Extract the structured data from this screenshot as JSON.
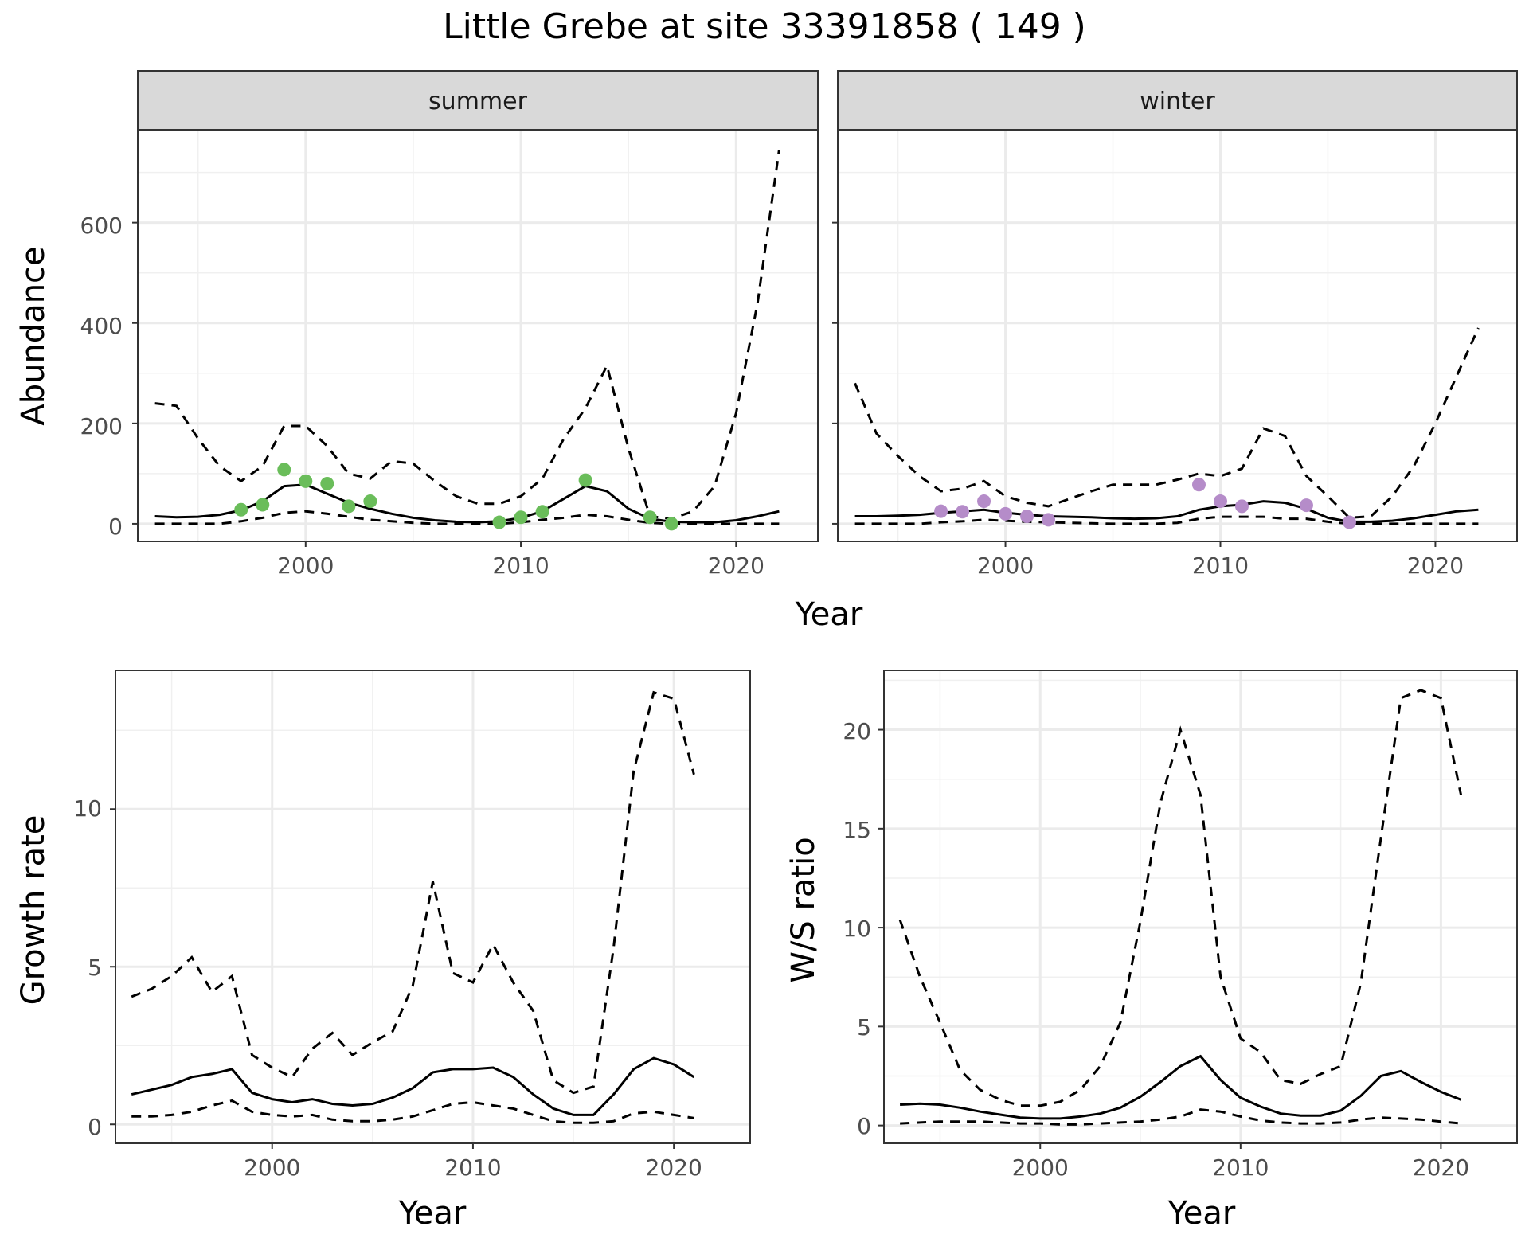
{
  "title": "Little Grebe at site 33391858 ( 149 )",
  "chart_data": [
    {
      "id": "abundance",
      "type": "line",
      "facets": [
        "summer",
        "winter"
      ],
      "xlabel": "Year",
      "ylabel": "Abundance",
      "xlim": [
        1992.2,
        2023.8
      ],
      "ylim": [
        -35,
        785
      ],
      "x_ticks": [
        2000,
        2010,
        2020
      ],
      "y_ticks": [
        0,
        200,
        400,
        600
      ],
      "grid": true,
      "point_colors": {
        "summer": "#6abd5a",
        "winter": "#b58cc9"
      },
      "panels": {
        "summer": {
          "years": [
            1993,
            1994,
            1995,
            1996,
            1997,
            1998,
            1999,
            2000,
            2001,
            2002,
            2003,
            2004,
            2005,
            2006,
            2007,
            2008,
            2009,
            2010,
            2011,
            2012,
            2013,
            2014,
            2015,
            2016,
            2017,
            2018,
            2019,
            2020,
            2021,
            2022
          ],
          "mean": [
            15,
            13,
            14,
            18,
            27,
            45,
            75,
            78,
            60,
            42,
            30,
            20,
            12,
            7,
            4,
            3,
            5,
            12,
            25,
            50,
            75,
            65,
            30,
            10,
            4,
            3,
            3,
            7,
            15,
            25
          ],
          "lower": [
            0,
            0,
            0,
            0,
            5,
            12,
            22,
            25,
            20,
            14,
            8,
            5,
            2,
            0,
            0,
            0,
            0,
            3,
            8,
            12,
            18,
            15,
            8,
            2,
            0,
            0,
            0,
            0,
            0,
            0
          ],
          "upper": [
            240,
            235,
            170,
            115,
            85,
            115,
            195,
            195,
            155,
            100,
            90,
            125,
            120,
            85,
            55,
            40,
            40,
            55,
            90,
            170,
            230,
            315,
            150,
            15,
            10,
            25,
            75,
            220,
            440,
            745
          ],
          "points": [
            [
              1997,
              28
            ],
            [
              1998,
              38
            ],
            [
              1999,
              108
            ],
            [
              2000,
              85
            ],
            [
              2001,
              80
            ],
            [
              2002,
              35
            ],
            [
              2003,
              45
            ],
            [
              2009,
              3
            ],
            [
              2010,
              13
            ],
            [
              2011,
              24
            ],
            [
              2013,
              87
            ],
            [
              2016,
              13
            ],
            [
              2017,
              0
            ]
          ]
        },
        "winter": {
          "years": [
            1993,
            1994,
            1995,
            1996,
            1997,
            1998,
            1999,
            2000,
            2001,
            2002,
            2003,
            2004,
            2005,
            2006,
            2007,
            2008,
            2009,
            2010,
            2011,
            2012,
            2013,
            2014,
            2015,
            2016,
            2017,
            2018,
            2019,
            2020,
            2021,
            2022
          ],
          "mean": [
            15,
            15,
            16,
            18,
            22,
            25,
            28,
            22,
            18,
            15,
            14,
            13,
            11,
            10,
            11,
            15,
            28,
            35,
            38,
            45,
            42,
            30,
            12,
            4,
            4,
            6,
            11,
            18,
            25,
            28
          ],
          "lower": [
            0,
            0,
            0,
            0,
            3,
            5,
            8,
            6,
            4,
            3,
            2,
            1,
            0,
            0,
            0,
            2,
            10,
            14,
            14,
            14,
            10,
            10,
            4,
            0,
            0,
            0,
            0,
            0,
            0,
            0
          ],
          "upper": [
            280,
            180,
            135,
            95,
            65,
            70,
            85,
            55,
            42,
            35,
            50,
            65,
            78,
            78,
            78,
            88,
            100,
            95,
            110,
            190,
            175,
            95,
            55,
            12,
            15,
            55,
            115,
            200,
            295,
            390
          ],
          "points": [
            [
              1997,
              25
            ],
            [
              1998,
              24
            ],
            [
              1999,
              45
            ],
            [
              2000,
              20
            ],
            [
              2001,
              15
            ],
            [
              2002,
              8
            ],
            [
              2009,
              78
            ],
            [
              2010,
              45
            ],
            [
              2011,
              35
            ],
            [
              2014,
              37
            ],
            [
              2016,
              3
            ]
          ]
        }
      }
    },
    {
      "id": "growth",
      "type": "line",
      "xlabel": "Year",
      "ylabel": "Growth rate",
      "xlim": [
        1992.2,
        2023.8
      ],
      "ylim": [
        -0.6,
        14.4
      ],
      "x_ticks": [
        2000,
        2010,
        2020
      ],
      "y_ticks": [
        0,
        5,
        10
      ],
      "grid": true,
      "years": [
        1993,
        1994,
        1995,
        1996,
        1997,
        1998,
        1999,
        2000,
        2001,
        2002,
        2003,
        2004,
        2005,
        2006,
        2007,
        2008,
        2009,
        2010,
        2011,
        2012,
        2013,
        2014,
        2015,
        2016,
        2017,
        2018,
        2019,
        2020,
        2021
      ],
      "mean": [
        0.95,
        1.1,
        1.25,
        1.5,
        1.6,
        1.75,
        1.0,
        0.8,
        0.7,
        0.8,
        0.65,
        0.6,
        0.65,
        0.85,
        1.15,
        1.65,
        1.75,
        1.75,
        1.8,
        1.5,
        0.95,
        0.5,
        0.3,
        0.3,
        0.95,
        1.75,
        2.1,
        1.9,
        1.5
      ],
      "lower": [
        0.25,
        0.25,
        0.3,
        0.4,
        0.6,
        0.75,
        0.4,
        0.3,
        0.25,
        0.3,
        0.15,
        0.1,
        0.1,
        0.15,
        0.25,
        0.45,
        0.65,
        0.7,
        0.6,
        0.5,
        0.3,
        0.1,
        0.05,
        0.05,
        0.1,
        0.35,
        0.4,
        0.3,
        0.2
      ],
      "upper": [
        4.05,
        4.3,
        4.7,
        5.3,
        4.2,
        4.7,
        2.2,
        1.8,
        1.5,
        2.4,
        2.9,
        2.2,
        2.6,
        2.95,
        4.4,
        7.7,
        4.8,
        4.5,
        5.7,
        4.5,
        3.6,
        1.4,
        1.0,
        1.2,
        5.6,
        11.2,
        13.7,
        13.5,
        11.1
      ]
    },
    {
      "id": "ratio",
      "type": "line",
      "xlabel": "Year",
      "ylabel": "W/S ratio",
      "xlim": [
        1992.2,
        2023.8
      ],
      "ylim": [
        -0.9,
        23.0
      ],
      "x_ticks": [
        2000,
        2010,
        2020
      ],
      "y_ticks": [
        0,
        5,
        10,
        15,
        20
      ],
      "grid": true,
      "years": [
        1993,
        1994,
        1995,
        1996,
        1997,
        1998,
        1999,
        2000,
        2001,
        2002,
        2003,
        2004,
        2005,
        2006,
        2007,
        2008,
        2009,
        2010,
        2011,
        2012,
        2013,
        2014,
        2015,
        2016,
        2017,
        2018,
        2019,
        2020,
        2021
      ],
      "mean": [
        1.05,
        1.1,
        1.05,
        0.9,
        0.7,
        0.55,
        0.4,
        0.35,
        0.35,
        0.45,
        0.6,
        0.9,
        1.45,
        2.2,
        3.0,
        3.5,
        2.3,
        1.4,
        0.95,
        0.6,
        0.5,
        0.5,
        0.75,
        1.5,
        2.5,
        2.75,
        2.2,
        1.7,
        1.3
      ],
      "lower": [
        0.1,
        0.15,
        0.2,
        0.2,
        0.2,
        0.15,
        0.1,
        0.1,
        0.05,
        0.05,
        0.1,
        0.15,
        0.2,
        0.3,
        0.45,
        0.8,
        0.7,
        0.45,
        0.25,
        0.15,
        0.1,
        0.1,
        0.15,
        0.3,
        0.4,
        0.35,
        0.3,
        0.2,
        0.1
      ],
      "upper": [
        10.4,
        7.5,
        5.2,
        2.8,
        1.8,
        1.3,
        1.0,
        1.0,
        1.2,
        1.8,
        3.0,
        5.2,
        10.3,
        16.3,
        20.0,
        16.7,
        7.5,
        4.4,
        3.7,
        2.3,
        2.1,
        2.6,
        3.0,
        7.2,
        14.5,
        21.6,
        22.0,
        21.6,
        16.7
      ]
    }
  ]
}
